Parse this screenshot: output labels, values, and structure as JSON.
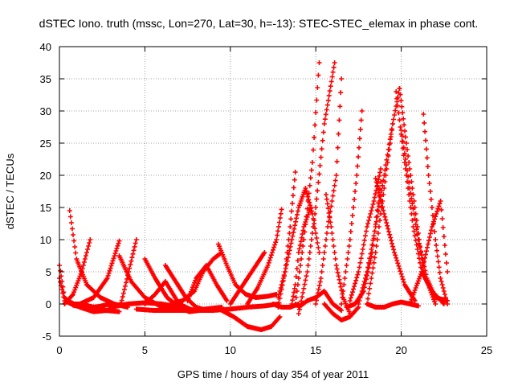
{
  "chart_data": {
    "type": "scatter",
    "title": "dSTEC Iono. truth (mssc, Lon=270, Lat=30, h=-13): STEC-STEC_elemax in phase cont.",
    "xlabel": "GPS time / hours of day 354 of year 2011",
    "ylabel": "dSTEC  / TECUs",
    "xlim": [
      0,
      25
    ],
    "ylim": [
      -5,
      40
    ],
    "xticks": [
      0,
      5,
      10,
      15,
      20,
      25
    ],
    "yticks": [
      -5,
      0,
      5,
      10,
      15,
      20,
      25,
      30,
      35,
      40
    ],
    "grid": true,
    "marker": "+",
    "colors": {
      "series": "#ff0000",
      "grid": "#a0a0a0",
      "axes": "#000000"
    },
    "series": [
      {
        "x": [
          0.0,
          0.3,
          0.8,
          1.5,
          2.3,
          3.0
        ],
        "y": [
          6.0,
          1.0,
          -0.2,
          -0.6,
          -0.4,
          0.0
        ]
      },
      {
        "x": [
          0.0,
          0.3,
          0.7,
          1.3,
          2.0,
          2.7,
          3.5
        ],
        "y": [
          4.0,
          0.5,
          0.0,
          0.0,
          -0.5,
          -1.0,
          -1.2
        ]
      },
      {
        "x": [
          0.6,
          1.0,
          1.6,
          2.4,
          3.2,
          4.0
        ],
        "y": [
          14.5,
          7.0,
          3.0,
          1.0,
          0.0,
          -0.5
        ]
      },
      {
        "x": [
          0.3,
          0.8,
          1.3,
          1.8
        ],
        "y": [
          0.0,
          1.5,
          5.0,
          10.0
        ]
      },
      {
        "x": [
          1.2,
          2.0,
          2.8,
          3.5
        ],
        "y": [
          0.0,
          1.0,
          4.0,
          9.8
        ]
      },
      {
        "x": [
          0.5,
          1.2,
          2.0,
          2.8,
          3.6,
          4.5
        ],
        "y": [
          0.5,
          -0.5,
          -1.2,
          -1.0,
          0.0,
          10.0
        ]
      },
      {
        "x": [
          3.5,
          4.2,
          5.0,
          6.0,
          7.0
        ],
        "y": [
          7.5,
          3.5,
          1.0,
          -0.5,
          -1.0
        ]
      },
      {
        "x": [
          3.0,
          4.0,
          5.0,
          6.0,
          7.0,
          8.0
        ],
        "y": [
          -0.5,
          0.0,
          0.2,
          0.0,
          -0.5,
          -1.0
        ]
      },
      {
        "x": [
          5.0,
          5.6,
          6.2,
          7.0,
          7.8
        ],
        "y": [
          0.0,
          1.5,
          3.5,
          0.0,
          -1.0
        ]
      },
      {
        "x": [
          5.0,
          5.6,
          6.3,
          7.0,
          7.6,
          8.2
        ],
        "y": [
          7.0,
          4.0,
          1.0,
          -0.5,
          -1.2,
          -1.0
        ]
      },
      {
        "x": [
          4.5,
          5.5,
          6.5,
          7.5,
          8.5,
          9.5
        ],
        "y": [
          -0.8,
          -1.0,
          -1.0,
          -1.0,
          -0.8,
          -0.5
        ]
      },
      {
        "x": [
          6.2,
          6.8,
          7.4,
          8.0,
          8.6
        ],
        "y": [
          6.0,
          3.5,
          1.0,
          -0.5,
          -1.0
        ]
      },
      {
        "x": [
          6.5,
          7.2,
          7.9,
          8.4,
          9.0,
          9.5
        ],
        "y": [
          0.0,
          0.5,
          2.0,
          5.0,
          7.0,
          8.0
        ]
      },
      {
        "x": [
          7.5,
          8.0,
          8.6,
          9.2,
          9.8
        ],
        "y": [
          0.5,
          4.0,
          6.0,
          3.0,
          0.5
        ]
      },
      {
        "x": [
          9.3,
          9.8,
          10.3,
          10.9,
          11.5,
          12.2,
          12.7
        ],
        "y": [
          9.3,
          6.0,
          3.0,
          1.5,
          1.0,
          1.2,
          1.5
        ]
      },
      {
        "x": [
          8.0,
          9.0,
          10.0,
          11.0,
          12.0,
          12.8
        ],
        "y": [
          -1.0,
          -1.0,
          -0.8,
          -0.5,
          -0.3,
          0.0
        ]
      },
      {
        "x": [
          9.5,
          10.2,
          11.0,
          11.8,
          12.4,
          12.9
        ],
        "y": [
          -1.0,
          -2.0,
          -3.5,
          -4.0,
          -3.5,
          -2.0
        ]
      },
      {
        "x": [
          10.0,
          10.5,
          11.0,
          11.5,
          12.0
        ],
        "y": [
          0.0,
          2.0,
          4.0,
          6.0,
          8.0
        ]
      },
      {
        "x": [
          11.0,
          11.6,
          12.2,
          12.7,
          13.0
        ],
        "y": [
          0.0,
          2.5,
          6.0,
          10.0,
          14.7
        ]
      },
      {
        "x": [
          12.5,
          13.0,
          13.5,
          14.0
        ],
        "y": [
          0.0,
          -0.5,
          -0.5,
          0.0
        ]
      },
      {
        "x": [
          12.8,
          13.2,
          13.6,
          14.0,
          14.4,
          14.8,
          15.2
        ],
        "y": [
          1.0,
          5.0,
          10.0,
          15.0,
          18.0,
          14.0,
          8.0
        ]
      },
      {
        "x": [
          12.8,
          13.2,
          13.5,
          13.8
        ],
        "y": [
          -0.5,
          5.0,
          12.0,
          20.5
        ]
      },
      {
        "x": [
          13.6,
          13.8,
          14.0,
          14.3,
          14.7
        ],
        "y": [
          0.0,
          3.0,
          8.0,
          12.0,
          15.0
        ]
      },
      {
        "x": [
          13.8,
          14.3,
          14.8,
          15.2
        ],
        "y": [
          0.0,
          10.0,
          22.0,
          37.5
        ]
      },
      {
        "x": [
          14.0,
          14.5,
          15.0,
          15.5,
          16.0,
          16.5
        ],
        "y": [
          -0.5,
          0.5,
          1.0,
          2.0,
          0.0,
          -1.0
        ]
      },
      {
        "x": [
          14.0,
          14.5,
          15.0,
          15.5,
          16.1
        ],
        "y": [
          -1.5,
          5.0,
          15.0,
          28.0,
          37.5
        ]
      },
      {
        "x": [
          15.0,
          15.3,
          15.7,
          16.2,
          16.5
        ],
        "y": [
          0.0,
          4.0,
          12.0,
          20.0,
          35.0
        ]
      },
      {
        "x": [
          15.6,
          15.9,
          16.2,
          16.6,
          17.0
        ],
        "y": [
          17.0,
          12.0,
          6.0,
          1.0,
          -1.5
        ]
      },
      {
        "x": [
          15.5,
          16.0,
          16.5,
          17.0,
          17.5
        ],
        "y": [
          0.0,
          -1.5,
          -2.5,
          -2.0,
          -0.5
        ]
      },
      {
        "x": [
          16.5,
          17.0,
          17.4,
          17.7
        ],
        "y": [
          0.0,
          10.0,
          20.0,
          30.0
        ]
      },
      {
        "x": [
          17.0,
          17.5,
          18.0,
          18.4,
          18.8
        ],
        "y": [
          0.5,
          5.0,
          12.0,
          16.0,
          21.0
        ]
      },
      {
        "x": [
          17.5,
          18.0,
          18.5,
          19.0,
          19.5
        ],
        "y": [
          0.0,
          5.0,
          12.0,
          20.0,
          28.0
        ]
      },
      {
        "x": [
          18.0,
          18.5,
          19.0,
          19.5,
          19.9
        ],
        "y": [
          0.0,
          8.0,
          18.0,
          28.0,
          33.5
        ]
      },
      {
        "x": [
          19.9,
          20.3,
          20.8,
          21.3,
          22.0
        ],
        "y": [
          33.5,
          25.0,
          15.0,
          5.0,
          0.0
        ]
      },
      {
        "x": [
          19.7,
          20.2,
          20.7,
          21.2,
          21.8,
          22.5
        ],
        "y": [
          33.0,
          22.0,
          12.0,
          5.0,
          2.0,
          0.0
        ]
      },
      {
        "x": [
          20.0,
          20.5,
          21.0,
          21.5,
          22.0,
          22.7
        ],
        "y": [
          27.0,
          18.0,
          10.0,
          4.0,
          1.0,
          0.5
        ]
      },
      {
        "x": [
          21.3,
          21.6,
          22.0,
          22.3,
          22.7
        ],
        "y": [
          29.5,
          20.0,
          10.0,
          4.0,
          0.0
        ]
      },
      {
        "x": [
          20.5,
          21.2,
          21.8,
          22.3,
          22.7
        ],
        "y": [
          0.0,
          5.0,
          12.0,
          16.0,
          5.0
        ]
      },
      {
        "x": [
          18.0,
          18.5,
          19.0,
          19.5,
          20.0,
          20.5,
          21.0
        ],
        "y": [
          0.0,
          -0.5,
          -0.5,
          0.0,
          0.3,
          0.0,
          -0.3
        ]
      },
      {
        "x": [
          16.8,
          17.3,
          17.8,
          18.3,
          18.8
        ],
        "y": [
          -0.5,
          0.0,
          2.0,
          8.0,
          19.0
        ]
      },
      {
        "x": [
          18.5,
          19.0,
          19.6,
          20.2,
          20.8
        ],
        "y": [
          19.5,
          14.0,
          8.0,
          3.0,
          0.5
        ]
      }
    ]
  }
}
